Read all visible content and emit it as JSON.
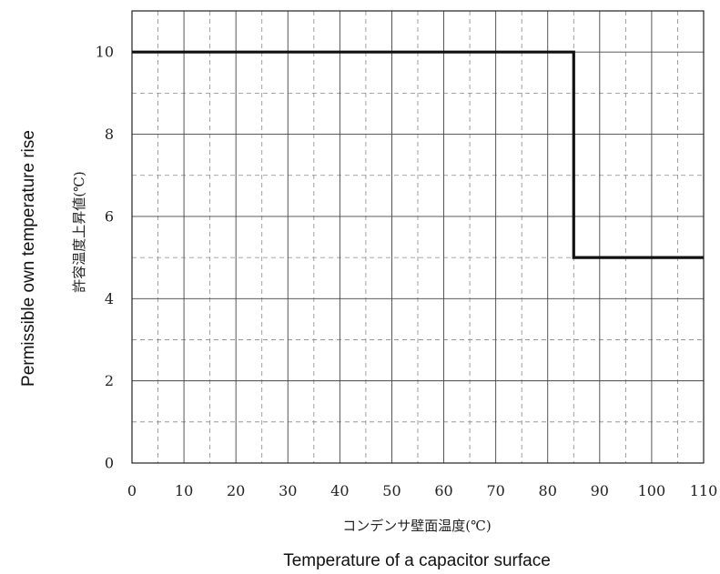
{
  "chart_data": {
    "type": "line",
    "title": "",
    "xlabel": "コンデンサ壁面温度(℃)",
    "xlabel_en": "Temperature of a capacitor surface",
    "ylabel": "許容温度上昇値(℃)",
    "ylabel_en": "Permissible own temperature rise",
    "xlim": [
      0,
      110
    ],
    "ylim": [
      0,
      11
    ],
    "x_ticks": [
      "0",
      "10",
      "20",
      "30",
      "40",
      "50",
      "60",
      "70",
      "80",
      "90",
      "100",
      "110"
    ],
    "y_ticks": [
      "0",
      "2",
      "4",
      "6",
      "8",
      "10"
    ],
    "grid": "major solid, minor dashed",
    "series": [
      {
        "color": "#111111",
        "x": [
          0,
          85,
          85,
          110
        ],
        "y": [
          10,
          10,
          5,
          5
        ]
      }
    ]
  }
}
